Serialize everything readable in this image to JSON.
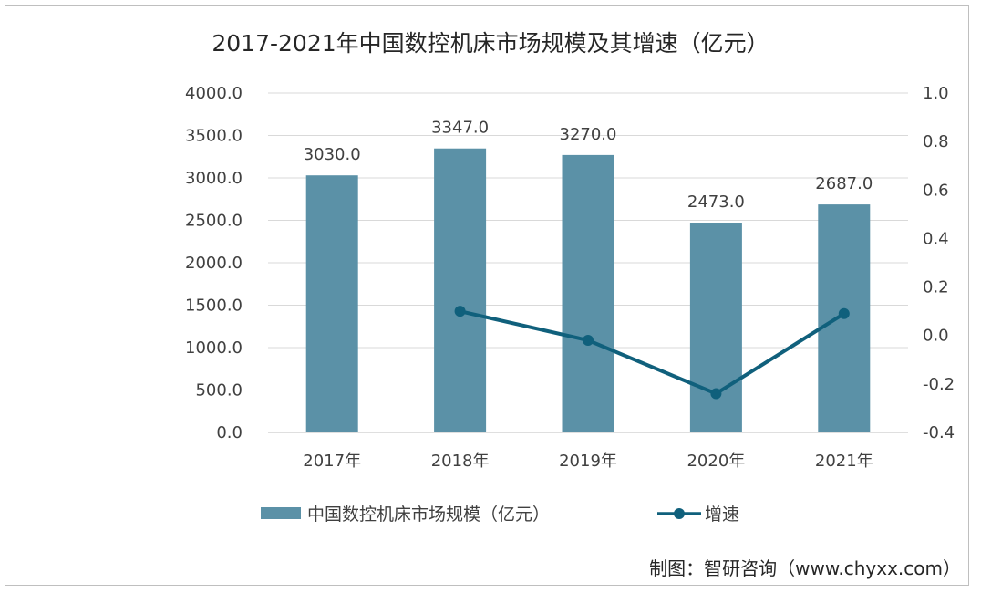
{
  "chart_data": {
    "type": "bar",
    "title": "2017-2021年中国数控机床市场规模及其增速（亿元）",
    "categories": [
      "2017年",
      "2018年",
      "2019年",
      "2020年",
      "2021年"
    ],
    "series": [
      {
        "name": "中国数控机床市场规模（亿元）",
        "type": "bar",
        "axis": "left",
        "color": "#5b91a7",
        "values": [
          3030.0,
          3347.0,
          3270.0,
          2473.0,
          2687.0
        ],
        "labels": [
          "3030.0",
          "3347.0",
          "3270.0",
          "2473.0",
          "2687.0"
        ]
      },
      {
        "name": "增速",
        "type": "line",
        "axis": "right",
        "color": "#10607c",
        "values": [
          null,
          0.1,
          -0.02,
          -0.24,
          0.09
        ]
      }
    ],
    "y_left": {
      "ylim": [
        0,
        4000
      ],
      "ticks": [
        "0.0",
        "500.0",
        "1000.0",
        "1500.0",
        "2000.0",
        "2500.0",
        "3000.0",
        "3500.0",
        "4000.0"
      ]
    },
    "y_right": {
      "ylim": [
        -0.4,
        1.0
      ],
      "ticks": [
        "-0.4",
        "-0.2",
        "0.0",
        "0.2",
        "0.4",
        "0.6",
        "0.8",
        "1.0"
      ]
    },
    "grid": true,
    "legend_position": "bottom"
  },
  "source": "制图：智研咨询（www.chyxx.com）"
}
